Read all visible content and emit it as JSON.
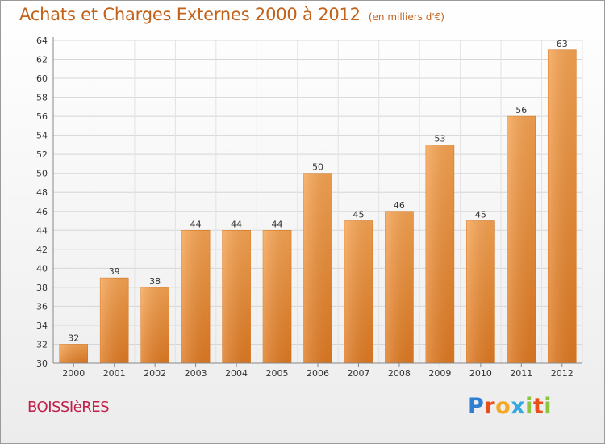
{
  "header": {
    "title": "Achats et Charges Externes 2000 à 2012",
    "subtitle": "(en milliers d'€)"
  },
  "footer": {
    "commune": "BOISSIèRES",
    "logo_letters": [
      {
        "ch": "P",
        "color": "#2e7fd1"
      },
      {
        "ch": "r",
        "color": "#e94e1b"
      },
      {
        "ch": "o",
        "color": "#f5a623"
      },
      {
        "ch": "x",
        "color": "#33a9e0"
      },
      {
        "ch": "i",
        "color": "#8cc63f"
      },
      {
        "ch": "t",
        "color": "#e94e1b"
      },
      {
        "ch": "i",
        "color": "#8cc63f"
      }
    ]
  },
  "chart_data": {
    "type": "bar",
    "categories": [
      "2000",
      "2001",
      "2002",
      "2003",
      "2004",
      "2005",
      "2006",
      "2007",
      "2008",
      "2009",
      "2010",
      "2011",
      "2012"
    ],
    "values": [
      32,
      39,
      38,
      44,
      44,
      44,
      50,
      45,
      46,
      53,
      45,
      56,
      63
    ],
    "title": "Achats et Charges Externes 2000 à 2012",
    "subtitle": "(en milliers d'€)",
    "xlabel": "",
    "ylabel": "",
    "ylim": [
      30,
      64
    ],
    "yticks": [
      30,
      32,
      34,
      36,
      38,
      40,
      42,
      44,
      46,
      48,
      50,
      52,
      54,
      56,
      58,
      60,
      62,
      64
    ],
    "grid": true,
    "bar_color": "#f0a048"
  }
}
